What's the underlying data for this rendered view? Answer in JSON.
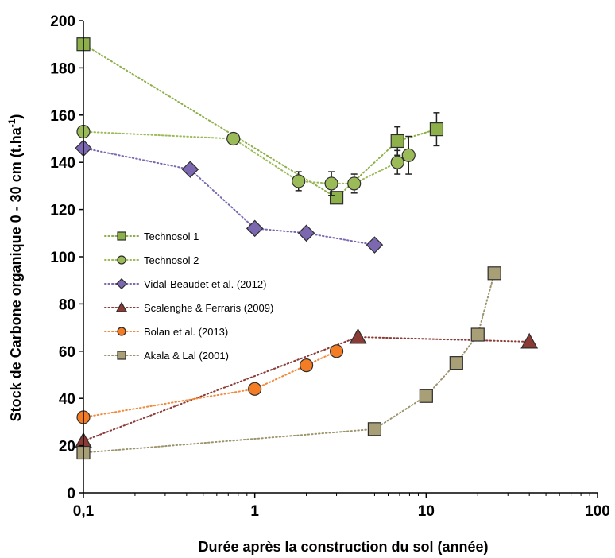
{
  "chart_data": {
    "type": "scatter",
    "title": "",
    "xlabel": "Durée après la construction du sol (année)",
    "ylabel": "Stock de Carbone organique  0 - 30 cm (t.ha-1)",
    "ylabel_parts": {
      "main": "Stock de Carbone organique  0 - 30 cm (t.ha",
      "sup": "-1",
      "end": ")"
    },
    "x_scale": "log",
    "xlim": [
      0.1,
      100
    ],
    "ylim": [
      0,
      200
    ],
    "x_ticks": [
      0.1,
      1,
      10,
      100
    ],
    "x_tick_labels": [
      "0,1",
      "1",
      "10",
      "100"
    ],
    "y_ticks": [
      0,
      20,
      40,
      60,
      80,
      100,
      120,
      140,
      160,
      180,
      200
    ],
    "y_tick_labels": [
      "0",
      "20",
      "40",
      "60",
      "80",
      "100",
      "120",
      "140",
      "160",
      "180",
      "200"
    ],
    "grid": false,
    "legend_position": "center-left",
    "series": [
      {
        "name": "Technosol 1",
        "marker": "square",
        "color": "#8db04a",
        "line_color": "#8db04a",
        "points": [
          {
            "x": 0.1,
            "y": 190
          },
          {
            "x": 3.0,
            "y": 125
          },
          {
            "x": 6.8,
            "y": 149,
            "err": 6
          },
          {
            "x": 11.5,
            "y": 154,
            "err": 7
          }
        ]
      },
      {
        "name": "Technosol 2",
        "marker": "circle",
        "color": "#9bbb59",
        "line_color": "#9bbb59",
        "points": [
          {
            "x": 0.1,
            "y": 153
          },
          {
            "x": 0.75,
            "y": 150
          },
          {
            "x": 1.8,
            "y": 132,
            "err": 4
          },
          {
            "x": 2.8,
            "y": 131,
            "err": 5
          },
          {
            "x": 3.8,
            "y": 131,
            "err": 4
          },
          {
            "x": 6.8,
            "y": 140,
            "err": 5
          },
          {
            "x": 7.9,
            "y": 143,
            "err": 8
          }
        ]
      },
      {
        "name": "Vidal-Beaudet et al. (2012)",
        "marker": "diamond",
        "color": "#7b68b0",
        "line_color": "#7b68b0",
        "points": [
          {
            "x": 0.1,
            "y": 146
          },
          {
            "x": 0.42,
            "y": 137
          },
          {
            "x": 1.0,
            "y": 112
          },
          {
            "x": 2.0,
            "y": 110
          },
          {
            "x": 5.0,
            "y": 105
          }
        ]
      },
      {
        "name": "Scalenghe & Ferraris (2009)",
        "marker": "triangle",
        "color": "#8c3a36",
        "line_color": "#8c3a36",
        "points": [
          {
            "x": 0.1,
            "y": 22
          },
          {
            "x": 4.0,
            "y": 66
          },
          {
            "x": 40.0,
            "y": 64
          }
        ]
      },
      {
        "name": "Bolan et al. (2013)",
        "marker": "circle",
        "color": "#f47c24",
        "line_color": "#f08a3c",
        "points": [
          {
            "x": 0.1,
            "y": 32
          },
          {
            "x": 1.0,
            "y": 44
          },
          {
            "x": 2.0,
            "y": 54
          },
          {
            "x": 3.0,
            "y": 60
          }
        ]
      },
      {
        "name": "Akala & Lal (2001)",
        "marker": "square",
        "color": "#a89f77",
        "line_color": "#9c946c",
        "points": [
          {
            "x": 0.1,
            "y": 17
          },
          {
            "x": 5.0,
            "y": 27
          },
          {
            "x": 10.0,
            "y": 41
          },
          {
            "x": 15.0,
            "y": 55
          },
          {
            "x": 20.0,
            "y": 67
          },
          {
            "x": 25.0,
            "y": 93
          }
        ]
      }
    ]
  }
}
